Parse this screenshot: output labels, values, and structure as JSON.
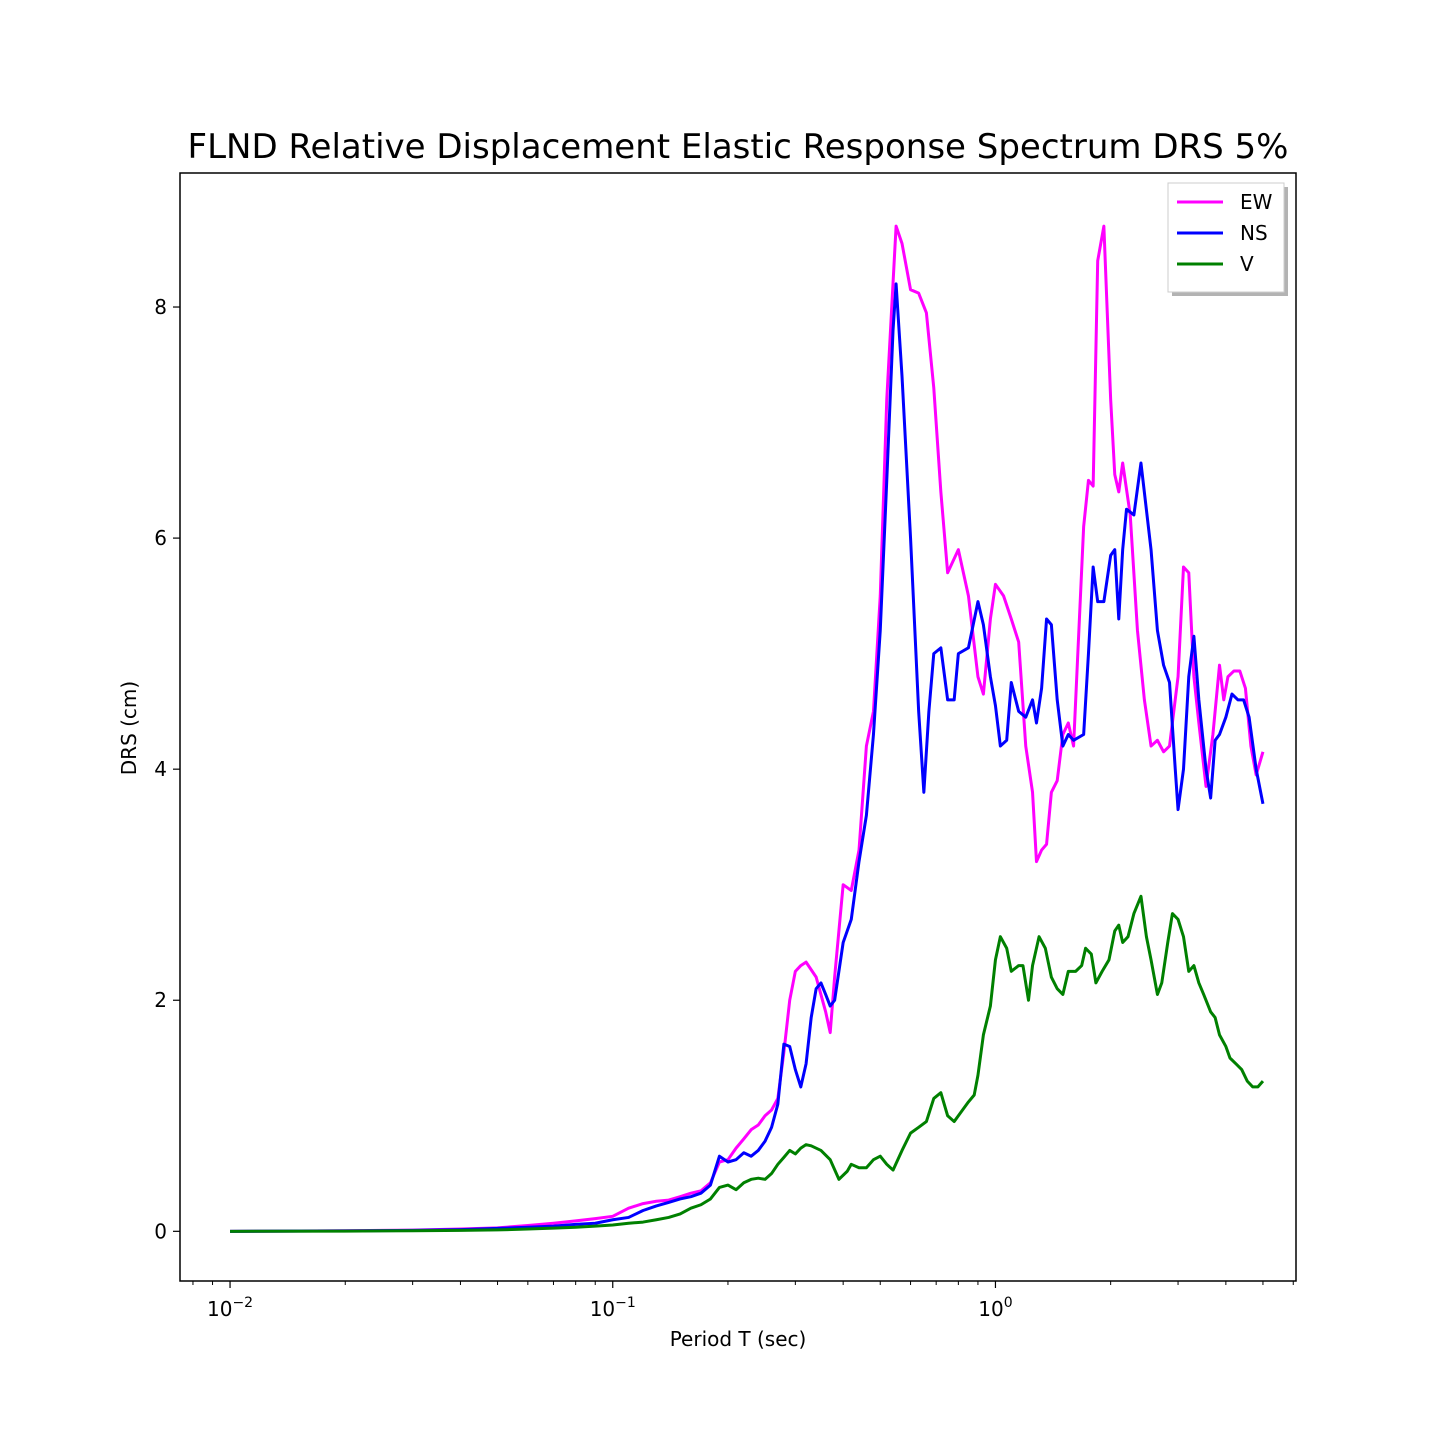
{
  "chart_data": {
    "type": "line",
    "title": "FLND Relative Displacement Elastic Response Spectrum DRS 5%",
    "xlabel": "Period T (sec)",
    "ylabel": "DRS (cm)",
    "xscale": "log",
    "xlim": [
      0.0074,
      6.1
    ],
    "ylim": [
      -0.43,
      9.16
    ],
    "grid": false,
    "legend_position": "top-right",
    "xticks": [
      {
        "value": 0.01,
        "base": "10",
        "exp": "−2"
      },
      {
        "value": 0.1,
        "base": "10",
        "exp": "−1"
      },
      {
        "value": 1,
        "base": "10",
        "exp": "0"
      }
    ],
    "yticks": [
      0,
      2,
      4,
      6,
      8
    ],
    "series": [
      {
        "name": "EW",
        "color": "#ff00ff",
        "points": [
          [
            0.01,
            0.0
          ],
          [
            0.02,
            0.005
          ],
          [
            0.03,
            0.01
          ],
          [
            0.04,
            0.02
          ],
          [
            0.05,
            0.03
          ],
          [
            0.06,
            0.05
          ],
          [
            0.07,
            0.07
          ],
          [
            0.08,
            0.09
          ],
          [
            0.09,
            0.11
          ],
          [
            0.1,
            0.13
          ],
          [
            0.11,
            0.2
          ],
          [
            0.12,
            0.24
          ],
          [
            0.13,
            0.26
          ],
          [
            0.14,
            0.27
          ],
          [
            0.15,
            0.3
          ],
          [
            0.16,
            0.33
          ],
          [
            0.17,
            0.35
          ],
          [
            0.18,
            0.42
          ],
          [
            0.19,
            0.6
          ],
          [
            0.2,
            0.62
          ],
          [
            0.21,
            0.72
          ],
          [
            0.22,
            0.8
          ],
          [
            0.23,
            0.88
          ],
          [
            0.24,
            0.92
          ],
          [
            0.25,
            1.0
          ],
          [
            0.26,
            1.05
          ],
          [
            0.27,
            1.15
          ],
          [
            0.28,
            1.55
          ],
          [
            0.29,
            2.0
          ],
          [
            0.3,
            2.25
          ],
          [
            0.31,
            2.3
          ],
          [
            0.32,
            2.33
          ],
          [
            0.34,
            2.2
          ],
          [
            0.36,
            1.9
          ],
          [
            0.37,
            1.72
          ],
          [
            0.38,
            2.2
          ],
          [
            0.4,
            3.0
          ],
          [
            0.42,
            2.95
          ],
          [
            0.44,
            3.3
          ],
          [
            0.46,
            4.2
          ],
          [
            0.48,
            4.5
          ],
          [
            0.5,
            5.5
          ],
          [
            0.52,
            7.2
          ],
          [
            0.55,
            8.7
          ],
          [
            0.57,
            8.55
          ],
          [
            0.6,
            8.15
          ],
          [
            0.63,
            8.12
          ],
          [
            0.66,
            7.95
          ],
          [
            0.69,
            7.3
          ],
          [
            0.72,
            6.4
          ],
          [
            0.75,
            5.7
          ],
          [
            0.8,
            5.9
          ],
          [
            0.85,
            5.5
          ],
          [
            0.9,
            4.8
          ],
          [
            0.93,
            4.65
          ],
          [
            0.97,
            5.3
          ],
          [
            1.0,
            5.6
          ],
          [
            1.05,
            5.5
          ],
          [
            1.1,
            5.3
          ],
          [
            1.15,
            5.1
          ],
          [
            1.2,
            4.2
          ],
          [
            1.25,
            3.8
          ],
          [
            1.28,
            3.2
          ],
          [
            1.32,
            3.3
          ],
          [
            1.36,
            3.35
          ],
          [
            1.4,
            3.8
          ],
          [
            1.45,
            3.9
          ],
          [
            1.5,
            4.3
          ],
          [
            1.55,
            4.4
          ],
          [
            1.6,
            4.2
          ],
          [
            1.7,
            6.1
          ],
          [
            1.75,
            6.5
          ],
          [
            1.8,
            6.45
          ],
          [
            1.85,
            8.4
          ],
          [
            1.92,
            8.7
          ],
          [
            2.0,
            7.2
          ],
          [
            2.05,
            6.55
          ],
          [
            2.1,
            6.4
          ],
          [
            2.15,
            6.65
          ],
          [
            2.25,
            6.2
          ],
          [
            2.35,
            5.2
          ],
          [
            2.45,
            4.6
          ],
          [
            2.55,
            4.2
          ],
          [
            2.65,
            4.25
          ],
          [
            2.75,
            4.15
          ],
          [
            2.85,
            4.2
          ],
          [
            3.0,
            4.8
          ],
          [
            3.1,
            5.75
          ],
          [
            3.2,
            5.7
          ],
          [
            3.3,
            4.8
          ],
          [
            3.4,
            4.4
          ],
          [
            3.55,
            3.85
          ],
          [
            3.7,
            4.3
          ],
          [
            3.85,
            4.9
          ],
          [
            3.95,
            4.6
          ],
          [
            4.05,
            4.8
          ],
          [
            4.2,
            4.85
          ],
          [
            4.35,
            4.85
          ],
          [
            4.5,
            4.7
          ],
          [
            4.65,
            4.2
          ],
          [
            4.8,
            3.95
          ],
          [
            5.0,
            4.15
          ]
        ]
      },
      {
        "name": "NS",
        "color": "#0000ff",
        "points": [
          [
            0.01,
            0.0
          ],
          [
            0.02,
            0.004
          ],
          [
            0.03,
            0.008
          ],
          [
            0.04,
            0.015
          ],
          [
            0.05,
            0.025
          ],
          [
            0.06,
            0.035
          ],
          [
            0.07,
            0.045
          ],
          [
            0.08,
            0.06
          ],
          [
            0.09,
            0.07
          ],
          [
            0.1,
            0.1
          ],
          [
            0.11,
            0.12
          ],
          [
            0.12,
            0.18
          ],
          [
            0.13,
            0.22
          ],
          [
            0.14,
            0.25
          ],
          [
            0.15,
            0.28
          ],
          [
            0.16,
            0.3
          ],
          [
            0.17,
            0.33
          ],
          [
            0.18,
            0.4
          ],
          [
            0.19,
            0.65
          ],
          [
            0.2,
            0.6
          ],
          [
            0.21,
            0.62
          ],
          [
            0.22,
            0.68
          ],
          [
            0.23,
            0.65
          ],
          [
            0.24,
            0.7
          ],
          [
            0.25,
            0.78
          ],
          [
            0.26,
            0.9
          ],
          [
            0.27,
            1.1
          ],
          [
            0.28,
            1.62
          ],
          [
            0.29,
            1.6
          ],
          [
            0.3,
            1.4
          ],
          [
            0.31,
            1.25
          ],
          [
            0.32,
            1.45
          ],
          [
            0.33,
            1.85
          ],
          [
            0.34,
            2.1
          ],
          [
            0.35,
            2.15
          ],
          [
            0.36,
            2.05
          ],
          [
            0.37,
            1.95
          ],
          [
            0.38,
            2.0
          ],
          [
            0.4,
            2.5
          ],
          [
            0.42,
            2.7
          ],
          [
            0.44,
            3.2
          ],
          [
            0.46,
            3.6
          ],
          [
            0.48,
            4.3
          ],
          [
            0.5,
            5.2
          ],
          [
            0.52,
            6.5
          ],
          [
            0.54,
            7.8
          ],
          [
            0.55,
            8.2
          ],
          [
            0.57,
            7.4
          ],
          [
            0.6,
            6.0
          ],
          [
            0.63,
            4.5
          ],
          [
            0.65,
            3.8
          ],
          [
            0.67,
            4.5
          ],
          [
            0.69,
            5.0
          ],
          [
            0.72,
            5.05
          ],
          [
            0.75,
            4.6
          ],
          [
            0.78,
            4.6
          ],
          [
            0.8,
            5.0
          ],
          [
            0.85,
            5.05
          ],
          [
            0.9,
            5.45
          ],
          [
            0.93,
            5.25
          ],
          [
            0.97,
            4.8
          ],
          [
            1.0,
            4.55
          ],
          [
            1.03,
            4.2
          ],
          [
            1.07,
            4.25
          ],
          [
            1.1,
            4.75
          ],
          [
            1.15,
            4.5
          ],
          [
            1.2,
            4.45
          ],
          [
            1.25,
            4.6
          ],
          [
            1.28,
            4.4
          ],
          [
            1.32,
            4.7
          ],
          [
            1.36,
            5.3
          ],
          [
            1.4,
            5.25
          ],
          [
            1.45,
            4.6
          ],
          [
            1.5,
            4.2
          ],
          [
            1.55,
            4.3
          ],
          [
            1.6,
            4.25
          ],
          [
            1.7,
            4.3
          ],
          [
            1.75,
            5.0
          ],
          [
            1.8,
            5.75
          ],
          [
            1.85,
            5.45
          ],
          [
            1.92,
            5.45
          ],
          [
            2.0,
            5.85
          ],
          [
            2.05,
            5.9
          ],
          [
            2.1,
            5.3
          ],
          [
            2.15,
            5.9
          ],
          [
            2.2,
            6.25
          ],
          [
            2.3,
            6.2
          ],
          [
            2.4,
            6.65
          ],
          [
            2.55,
            5.9
          ],
          [
            2.65,
            5.2
          ],
          [
            2.75,
            4.9
          ],
          [
            2.85,
            4.75
          ],
          [
            2.95,
            4.0
          ],
          [
            3.0,
            3.65
          ],
          [
            3.1,
            4.0
          ],
          [
            3.2,
            4.8
          ],
          [
            3.3,
            5.15
          ],
          [
            3.4,
            4.6
          ],
          [
            3.55,
            4.0
          ],
          [
            3.65,
            3.75
          ],
          [
            3.75,
            4.25
          ],
          [
            3.85,
            4.3
          ],
          [
            4.0,
            4.45
          ],
          [
            4.15,
            4.65
          ],
          [
            4.3,
            4.6
          ],
          [
            4.45,
            4.6
          ],
          [
            4.6,
            4.45
          ],
          [
            4.8,
            4.0
          ],
          [
            5.0,
            3.7
          ]
        ]
      },
      {
        "name": "V",
        "color": "#008000",
        "points": [
          [
            0.01,
            0.0
          ],
          [
            0.02,
            0.002
          ],
          [
            0.03,
            0.005
          ],
          [
            0.04,
            0.008
          ],
          [
            0.05,
            0.012
          ],
          [
            0.06,
            0.02
          ],
          [
            0.07,
            0.028
          ],
          [
            0.08,
            0.035
          ],
          [
            0.09,
            0.045
          ],
          [
            0.1,
            0.055
          ],
          [
            0.11,
            0.07
          ],
          [
            0.12,
            0.08
          ],
          [
            0.13,
            0.1
          ],
          [
            0.14,
            0.12
          ],
          [
            0.15,
            0.15
          ],
          [
            0.16,
            0.2
          ],
          [
            0.17,
            0.23
          ],
          [
            0.18,
            0.28
          ],
          [
            0.19,
            0.38
          ],
          [
            0.2,
            0.4
          ],
          [
            0.21,
            0.36
          ],
          [
            0.22,
            0.42
          ],
          [
            0.23,
            0.45
          ],
          [
            0.24,
            0.46
          ],
          [
            0.25,
            0.45
          ],
          [
            0.26,
            0.5
          ],
          [
            0.27,
            0.58
          ],
          [
            0.28,
            0.64
          ],
          [
            0.29,
            0.7
          ],
          [
            0.3,
            0.67
          ],
          [
            0.31,
            0.72
          ],
          [
            0.32,
            0.75
          ],
          [
            0.33,
            0.74
          ],
          [
            0.35,
            0.7
          ],
          [
            0.37,
            0.62
          ],
          [
            0.39,
            0.45
          ],
          [
            0.41,
            0.52
          ],
          [
            0.42,
            0.58
          ],
          [
            0.44,
            0.55
          ],
          [
            0.46,
            0.55
          ],
          [
            0.48,
            0.62
          ],
          [
            0.5,
            0.65
          ],
          [
            0.52,
            0.58
          ],
          [
            0.54,
            0.53
          ],
          [
            0.57,
            0.7
          ],
          [
            0.6,
            0.85
          ],
          [
            0.63,
            0.9
          ],
          [
            0.66,
            0.95
          ],
          [
            0.69,
            1.15
          ],
          [
            0.72,
            1.2
          ],
          [
            0.75,
            1.0
          ],
          [
            0.78,
            0.95
          ],
          [
            0.8,
            1.0
          ],
          [
            0.85,
            1.12
          ],
          [
            0.88,
            1.18
          ],
          [
            0.9,
            1.35
          ],
          [
            0.93,
            1.7
          ],
          [
            0.97,
            1.95
          ],
          [
            1.0,
            2.35
          ],
          [
            1.03,
            2.55
          ],
          [
            1.07,
            2.45
          ],
          [
            1.1,
            2.25
          ],
          [
            1.15,
            2.3
          ],
          [
            1.18,
            2.3
          ],
          [
            1.22,
            2.0
          ],
          [
            1.25,
            2.3
          ],
          [
            1.3,
            2.55
          ],
          [
            1.35,
            2.45
          ],
          [
            1.4,
            2.2
          ],
          [
            1.45,
            2.1
          ],
          [
            1.5,
            2.05
          ],
          [
            1.55,
            2.25
          ],
          [
            1.62,
            2.25
          ],
          [
            1.68,
            2.3
          ],
          [
            1.72,
            2.45
          ],
          [
            1.78,
            2.4
          ],
          [
            1.83,
            2.15
          ],
          [
            1.9,
            2.25
          ],
          [
            1.98,
            2.35
          ],
          [
            2.05,
            2.6
          ],
          [
            2.1,
            2.65
          ],
          [
            2.15,
            2.5
          ],
          [
            2.22,
            2.55
          ],
          [
            2.3,
            2.75
          ],
          [
            2.4,
            2.9
          ],
          [
            2.48,
            2.55
          ],
          [
            2.55,
            2.35
          ],
          [
            2.65,
            2.05
          ],
          [
            2.72,
            2.15
          ],
          [
            2.82,
            2.5
          ],
          [
            2.9,
            2.75
          ],
          [
            3.0,
            2.7
          ],
          [
            3.1,
            2.55
          ],
          [
            3.2,
            2.25
          ],
          [
            3.3,
            2.3
          ],
          [
            3.4,
            2.15
          ],
          [
            3.5,
            2.05
          ],
          [
            3.65,
            1.9
          ],
          [
            3.75,
            1.85
          ],
          [
            3.85,
            1.7
          ],
          [
            4.0,
            1.6
          ],
          [
            4.1,
            1.5
          ],
          [
            4.25,
            1.45
          ],
          [
            4.4,
            1.4
          ],
          [
            4.55,
            1.3
          ],
          [
            4.7,
            1.25
          ],
          [
            4.85,
            1.25
          ],
          [
            5.0,
            1.3
          ]
        ]
      }
    ]
  }
}
